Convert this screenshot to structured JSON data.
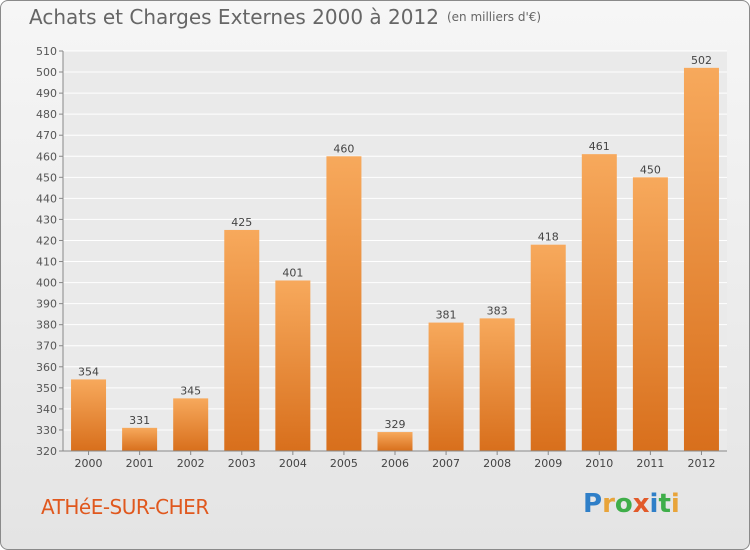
{
  "title": "Achats et Charges Externes 2000 à 2012",
  "unit": "(en milliers d'€)",
  "place": "ATHéE-SUR-CHER",
  "logo": {
    "letters": [
      "P",
      "r",
      "o",
      "x",
      "i",
      "t",
      "i"
    ],
    "colors": [
      "#2f7fc8",
      "#e8a43a",
      "#3fae49",
      "#e25a2a",
      "#2f7fc8",
      "#3fae49",
      "#e8a43a"
    ]
  },
  "colors": {
    "bar_top": "#f7a95c",
    "bar_bottom": "#d86f1c",
    "place": "#e0581e"
  },
  "chart_data": {
    "type": "bar",
    "categories": [
      "2000",
      "2001",
      "2002",
      "2003",
      "2004",
      "2005",
      "2006",
      "2007",
      "2008",
      "2009",
      "2010",
      "2011",
      "2012"
    ],
    "values": [
      354,
      331,
      345,
      425,
      401,
      460,
      329,
      381,
      383,
      418,
      461,
      450,
      502
    ],
    "ylim": [
      320,
      510
    ],
    "yticks": [
      320,
      330,
      340,
      350,
      360,
      370,
      380,
      390,
      400,
      410,
      420,
      430,
      440,
      450,
      460,
      470,
      480,
      490,
      500,
      510
    ],
    "grid": true
  }
}
